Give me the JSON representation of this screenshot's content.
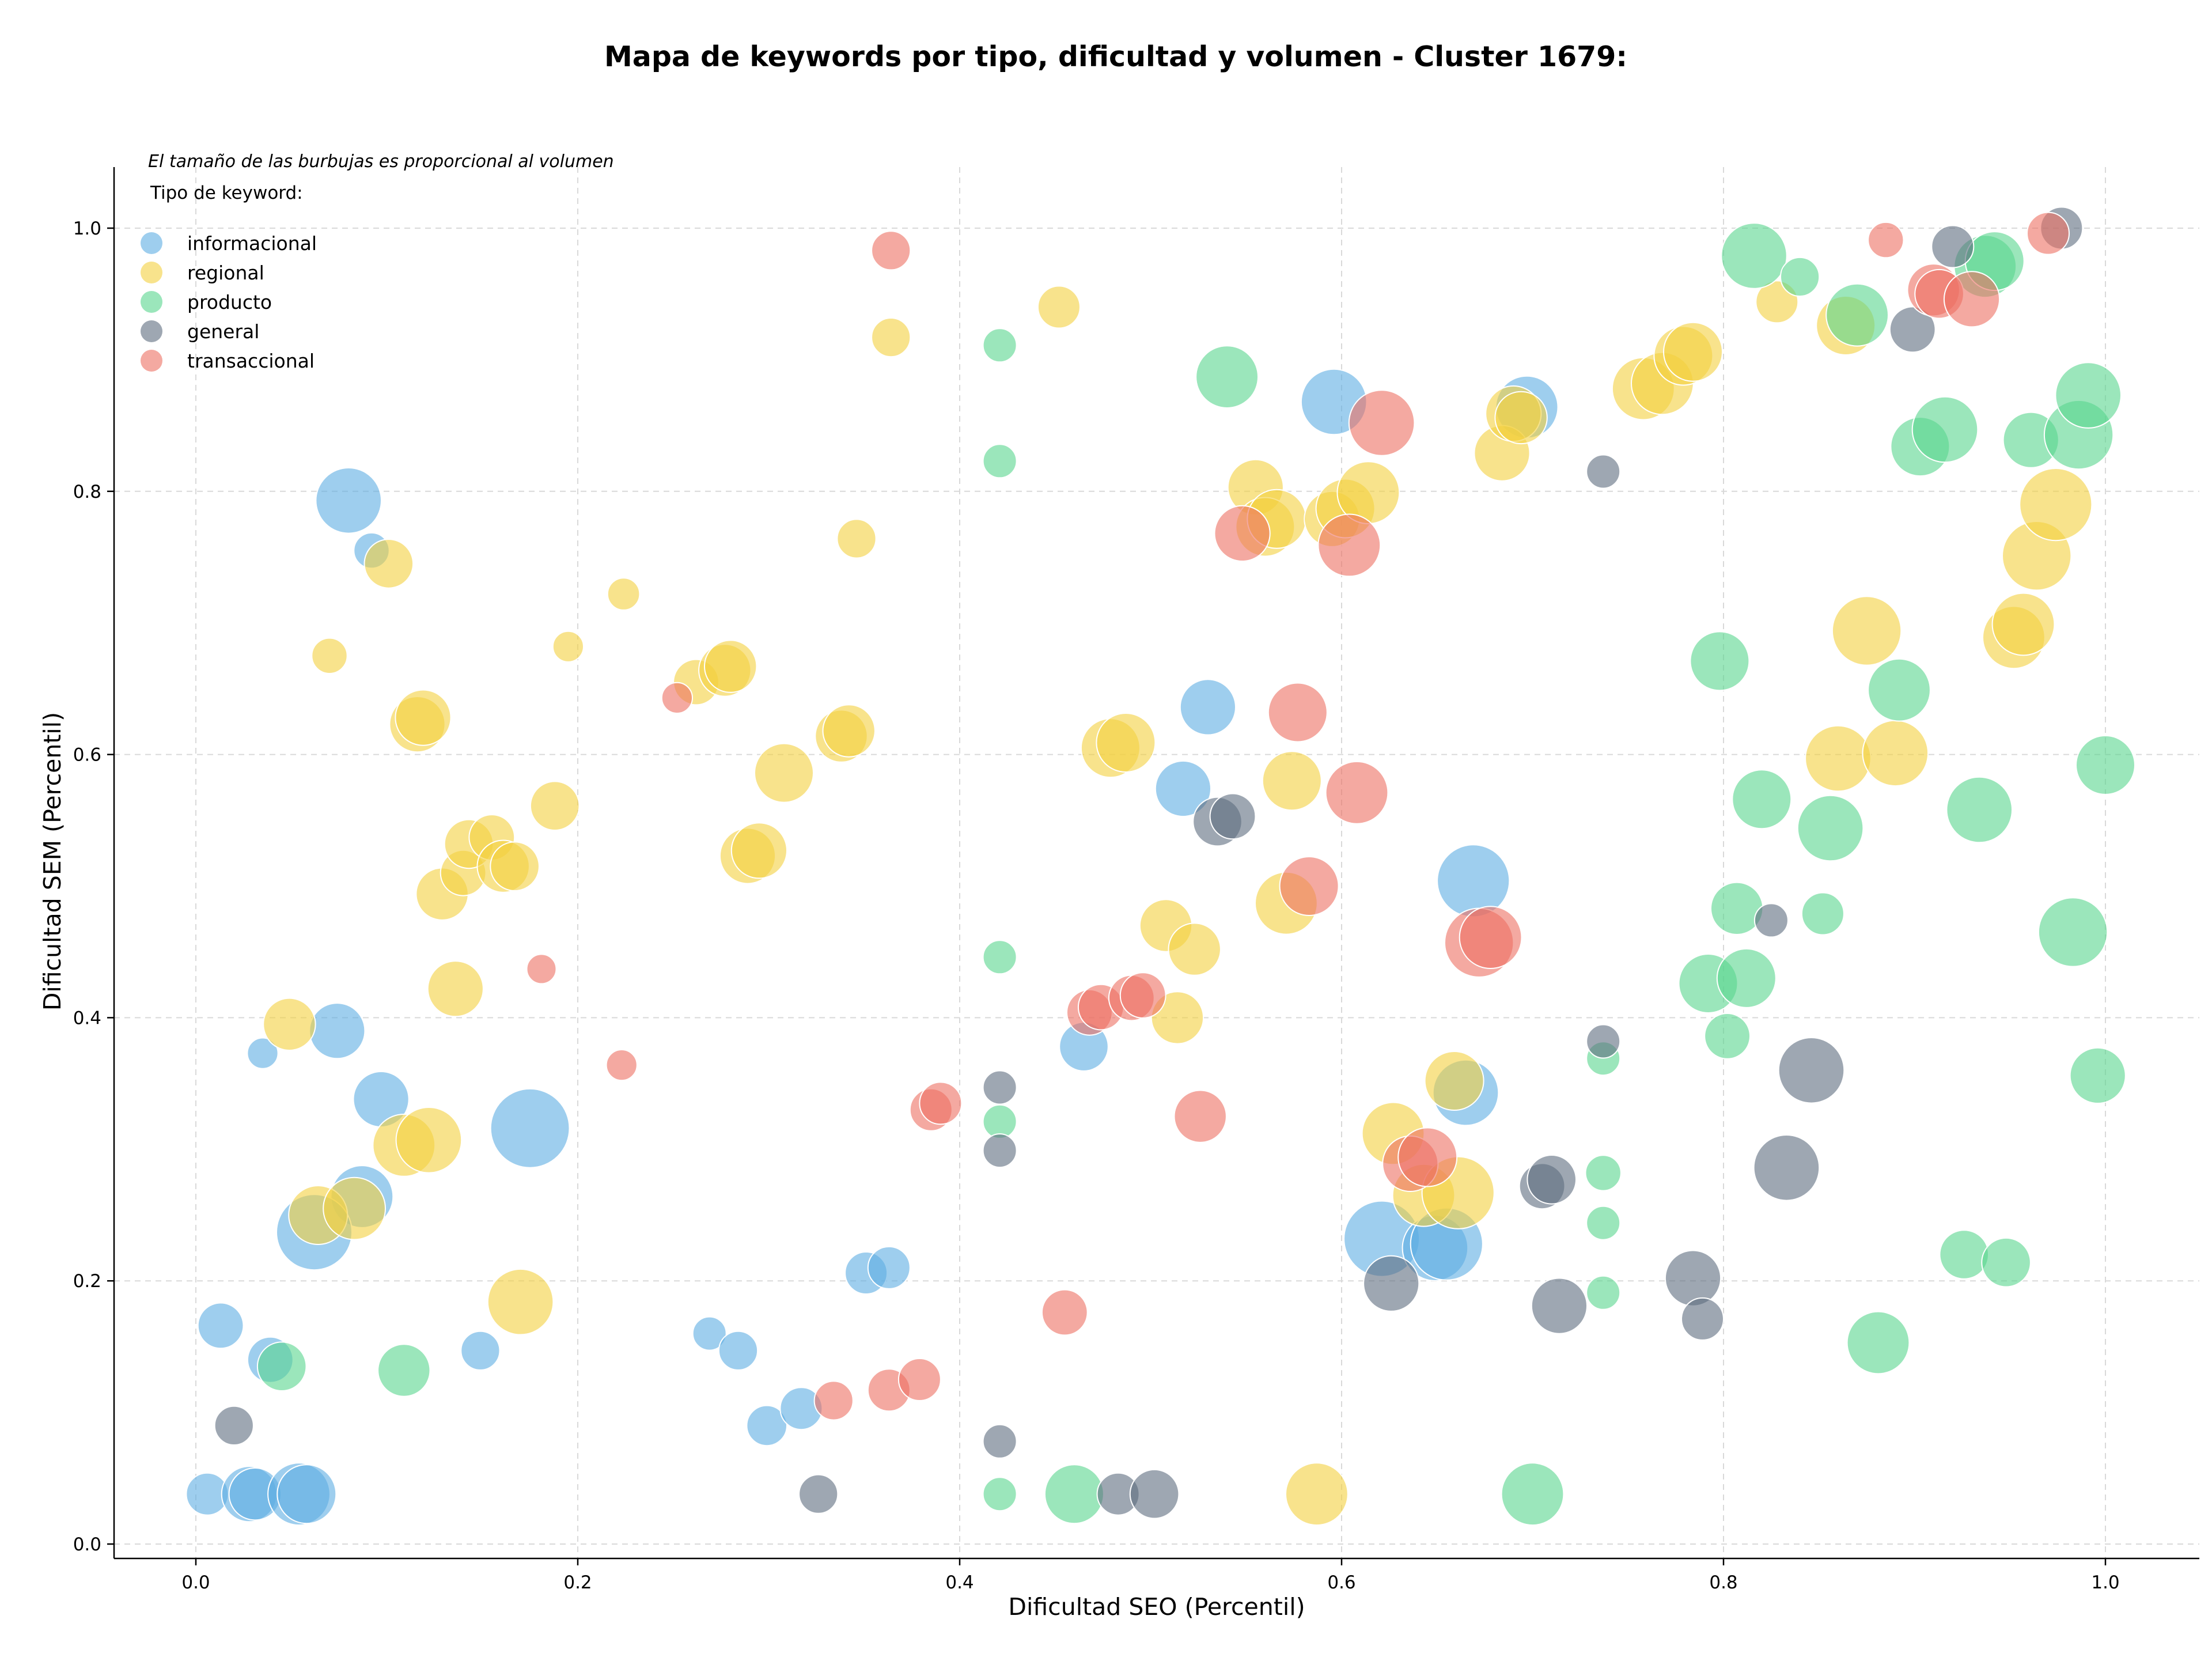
{
  "chart_data": {
    "type": "scatter",
    "title": "Mapa de keywords por tipo, dificultad y volumen - Cluster 1679:",
    "xlabel": "Dificultad SEO (Percentil)",
    "ylabel": "Dificultad SEM (Percentil)",
    "xlim": [
      -0.04,
      1.05
    ],
    "ylim": [
      -0.01,
      1.05
    ],
    "xticks": [
      "0.0",
      "0.2",
      "0.4",
      "0.6",
      "0.8",
      "1.0"
    ],
    "yticks": [
      "0.0",
      "0.2",
      "0.4",
      "0.6",
      "0.8",
      "1.0"
    ],
    "grid": true,
    "annotation": "El tamaño de las burbujas es proporcional al volumen",
    "legend_title": "Tipo de keyword:",
    "legend_position": "top-left",
    "size_encoding": "relative search volume (0-1)",
    "series": [
      {
        "name": "informacional",
        "color": "#5dade2",
        "points": [
          [
            0.08,
            0.793,
            0.6
          ],
          [
            0.092,
            0.755,
            0.15
          ],
          [
            0.035,
            0.373,
            0.08
          ],
          [
            0.074,
            0.39,
            0.45
          ],
          [
            0.097,
            0.338,
            0.45
          ],
          [
            0.175,
            0.316,
            0.8
          ],
          [
            0.087,
            0.264,
            0.55
          ],
          [
            0.062,
            0.237,
            0.75
          ],
          [
            0.013,
            0.166,
            0.3
          ],
          [
            0.039,
            0.14,
            0.3
          ],
          [
            0.149,
            0.147,
            0.2
          ],
          [
            0.006,
            0.038,
            0.25
          ],
          [
            0.028,
            0.038,
            0.45
          ],
          [
            0.031,
            0.038,
            0.4
          ],
          [
            0.054,
            0.038,
            0.55
          ],
          [
            0.058,
            0.038,
            0.5
          ],
          [
            0.269,
            0.16,
            0.12
          ],
          [
            0.284,
            0.147,
            0.2
          ],
          [
            0.299,
            0.09,
            0.22
          ],
          [
            0.317,
            0.103,
            0.25
          ],
          [
            0.351,
            0.206,
            0.25
          ],
          [
            0.363,
            0.21,
            0.25
          ],
          [
            0.465,
            0.378,
            0.35
          ],
          [
            0.517,
            0.574,
            0.45
          ],
          [
            0.53,
            0.636,
            0.45
          ],
          [
            0.596,
            0.868,
            0.6
          ],
          [
            0.669,
            0.504,
            0.7
          ],
          [
            0.665,
            0.343,
            0.6
          ],
          [
            0.621,
            0.232,
            0.75
          ],
          [
            0.649,
            0.225,
            0.6
          ],
          [
            0.655,
            0.228,
            0.7
          ],
          [
            0.697,
            0.864,
            0.55
          ]
        ]
      },
      {
        "name": "regional",
        "color": "#f4d03f",
        "points": [
          [
            0.07,
            0.675,
            0.15
          ],
          [
            0.101,
            0.745,
            0.35
          ],
          [
            0.116,
            0.623,
            0.45
          ],
          [
            0.119,
            0.628,
            0.45
          ],
          [
            0.049,
            0.395,
            0.4
          ],
          [
            0.136,
            0.422,
            0.45
          ],
          [
            0.109,
            0.303,
            0.55
          ],
          [
            0.122,
            0.307,
            0.6
          ],
          [
            0.064,
            0.25,
            0.5
          ],
          [
            0.083,
            0.255,
            0.55
          ],
          [
            0.17,
            0.184,
            0.6
          ],
          [
            0.224,
            0.722,
            0.1
          ],
          [
            0.195,
            0.682,
            0.08
          ],
          [
            0.188,
            0.561,
            0.35
          ],
          [
            0.129,
            0.494,
            0.4
          ],
          [
            0.14,
            0.51,
            0.3
          ],
          [
            0.143,
            0.532,
            0.35
          ],
          [
            0.155,
            0.537,
            0.3
          ],
          [
            0.161,
            0.515,
            0.4
          ],
          [
            0.167,
            0.515,
            0.35
          ],
          [
            0.262,
            0.655,
            0.3
          ],
          [
            0.277,
            0.664,
            0.4
          ],
          [
            0.28,
            0.667,
            0.4
          ],
          [
            0.289,
            0.523,
            0.45
          ],
          [
            0.295,
            0.527,
            0.45
          ],
          [
            0.308,
            0.586,
            0.5
          ],
          [
            0.338,
            0.614,
            0.4
          ],
          [
            0.342,
            0.618,
            0.4
          ],
          [
            0.346,
            0.764,
            0.2
          ],
          [
            0.364,
            0.917,
            0.2
          ],
          [
            0.452,
            0.94,
            0.25
          ],
          [
            0.479,
            0.605,
            0.5
          ],
          [
            0.487,
            0.609,
            0.5
          ],
          [
            0.508,
            0.47,
            0.4
          ],
          [
            0.523,
            0.452,
            0.4
          ],
          [
            0.514,
            0.4,
            0.4
          ],
          [
            0.555,
            0.803,
            0.45
          ],
          [
            0.56,
            0.773,
            0.5
          ],
          [
            0.566,
            0.779,
            0.5
          ],
          [
            0.574,
            0.58,
            0.5
          ],
          [
            0.571,
            0.487,
            0.55
          ],
          [
            0.595,
            0.779,
            0.45
          ],
          [
            0.602,
            0.787,
            0.5
          ],
          [
            0.614,
            0.799,
            0.55
          ],
          [
            0.627,
            0.312,
            0.55
          ],
          [
            0.643,
            0.265,
            0.55
          ],
          [
            0.659,
            0.352,
            0.5
          ],
          [
            0.661,
            0.267,
            0.7
          ],
          [
            0.684,
            0.829,
            0.45
          ],
          [
            0.69,
            0.859,
            0.45
          ],
          [
            0.694,
            0.856,
            0.4
          ],
          [
            0.587,
            0.038,
            0.55
          ],
          [
            0.758,
            0.878,
            0.55
          ],
          [
            0.768,
            0.882,
            0.55
          ],
          [
            0.779,
            0.903,
            0.5
          ],
          [
            0.784,
            0.906,
            0.5
          ],
          [
            0.828,
            0.944,
            0.25
          ],
          [
            0.864,
            0.926,
            0.5
          ],
          [
            0.875,
            0.694,
            0.65
          ],
          [
            0.86,
            0.597,
            0.6
          ],
          [
            0.89,
            0.601,
            0.6
          ],
          [
            0.952,
            0.689,
            0.55
          ],
          [
            0.957,
            0.699,
            0.55
          ],
          [
            0.964,
            0.751,
            0.65
          ],
          [
            0.974,
            0.79,
            0.7
          ]
        ]
      },
      {
        "name": "producto",
        "color": "#58d68d",
        "points": [
          [
            0.045,
            0.135,
            0.35
          ],
          [
            0.109,
            0.132,
            0.4
          ],
          [
            0.421,
            0.911,
            0.12
          ],
          [
            0.421,
            0.823,
            0.12
          ],
          [
            0.421,
            0.446,
            0.12
          ],
          [
            0.421,
            0.321,
            0.12
          ],
          [
            0.421,
            0.038,
            0.12
          ],
          [
            0.46,
            0.038,
            0.5
          ],
          [
            0.54,
            0.887,
            0.55
          ],
          [
            0.7,
            0.038,
            0.55
          ],
          [
            0.737,
            0.369,
            0.12
          ],
          [
            0.737,
            0.282,
            0.15
          ],
          [
            0.737,
            0.244,
            0.12
          ],
          [
            0.737,
            0.191,
            0.12
          ],
          [
            0.798,
            0.671,
            0.5
          ],
          [
            0.792,
            0.426,
            0.5
          ],
          [
            0.802,
            0.386,
            0.3
          ],
          [
            0.807,
            0.483,
            0.4
          ],
          [
            0.812,
            0.43,
            0.5
          ],
          [
            0.816,
            0.979,
            0.6
          ],
          [
            0.82,
            0.566,
            0.5
          ],
          [
            0.84,
            0.963,
            0.2
          ],
          [
            0.852,
            0.479,
            0.25
          ],
          [
            0.856,
            0.544,
            0.6
          ],
          [
            0.87,
            0.934,
            0.55
          ],
          [
            0.881,
            0.153,
            0.55
          ],
          [
            0.892,
            0.649,
            0.55
          ],
          [
            0.903,
            0.834,
            0.5
          ],
          [
            0.916,
            0.847,
            0.6
          ],
          [
            0.926,
            0.22,
            0.35
          ],
          [
            0.934,
            0.558,
            0.6
          ],
          [
            0.937,
            0.971,
            0.55
          ],
          [
            0.942,
            0.975,
            0.5
          ],
          [
            0.948,
            0.214,
            0.35
          ],
          [
            0.961,
            0.839,
            0.45
          ],
          [
            0.983,
            0.465,
            0.65
          ],
          [
            0.986,
            0.843,
            0.65
          ],
          [
            0.991,
            0.873,
            0.6
          ],
          [
            0.996,
            0.356,
            0.45
          ],
          [
            1.0,
            0.592,
            0.5
          ]
        ]
      },
      {
        "name": "general",
        "color": "#5d6d7e",
        "points": [
          [
            0.02,
            0.09,
            0.2
          ],
          [
            0.326,
            0.038,
            0.2
          ],
          [
            0.421,
            0.347,
            0.12
          ],
          [
            0.421,
            0.299,
            0.12
          ],
          [
            0.421,
            0.078,
            0.12
          ],
          [
            0.483,
            0.038,
            0.25
          ],
          [
            0.502,
            0.038,
            0.35
          ],
          [
            0.535,
            0.549,
            0.35
          ],
          [
            0.543,
            0.553,
            0.3
          ],
          [
            0.626,
            0.198,
            0.45
          ],
          [
            0.705,
            0.272,
            0.3
          ],
          [
            0.71,
            0.277,
            0.35
          ],
          [
            0.714,
            0.181,
            0.45
          ],
          [
            0.737,
            0.815,
            0.12
          ],
          [
            0.737,
            0.382,
            0.12
          ],
          [
            0.784,
            0.202,
            0.45
          ],
          [
            0.789,
            0.171,
            0.25
          ],
          [
            0.825,
            0.474,
            0.12
          ],
          [
            0.833,
            0.286,
            0.6
          ],
          [
            0.846,
            0.36,
            0.6
          ],
          [
            0.899,
            0.923,
            0.3
          ],
          [
            0.92,
            0.986,
            0.25
          ],
          [
            0.977,
            1.0,
            0.25
          ]
        ]
      },
      {
        "name": "transaccional",
        "color": "#ec7063",
        "points": [
          [
            0.364,
            0.983,
            0.2
          ],
          [
            0.252,
            0.643,
            0.08
          ],
          [
            0.181,
            0.437,
            0.06
          ],
          [
            0.223,
            0.364,
            0.08
          ],
          [
            0.334,
            0.109,
            0.2
          ],
          [
            0.363,
            0.117,
            0.25
          ],
          [
            0.379,
            0.125,
            0.25
          ],
          [
            0.385,
            0.33,
            0.25
          ],
          [
            0.39,
            0.335,
            0.25
          ],
          [
            0.455,
            0.176,
            0.3
          ],
          [
            0.468,
            0.404,
            0.3
          ],
          [
            0.474,
            0.408,
            0.3
          ],
          [
            0.49,
            0.415,
            0.3
          ],
          [
            0.496,
            0.417,
            0.3
          ],
          [
            0.526,
            0.325,
            0.4
          ],
          [
            0.548,
            0.768,
            0.45
          ],
          [
            0.577,
            0.632,
            0.5
          ],
          [
            0.583,
            0.5,
            0.5
          ],
          [
            0.604,
            0.759,
            0.55
          ],
          [
            0.608,
            0.571,
            0.55
          ],
          [
            0.621,
            0.852,
            0.6
          ],
          [
            0.636,
            0.289,
            0.45
          ],
          [
            0.645,
            0.294,
            0.5
          ],
          [
            0.672,
            0.457,
            0.65
          ],
          [
            0.678,
            0.461,
            0.55
          ],
          [
            0.885,
            0.991,
            0.15
          ],
          [
            0.91,
            0.953,
            0.4
          ],
          [
            0.913,
            0.95,
            0.35
          ],
          [
            0.93,
            0.946,
            0.45
          ],
          [
            0.97,
            0.996,
            0.25
          ]
        ]
      }
    ]
  }
}
